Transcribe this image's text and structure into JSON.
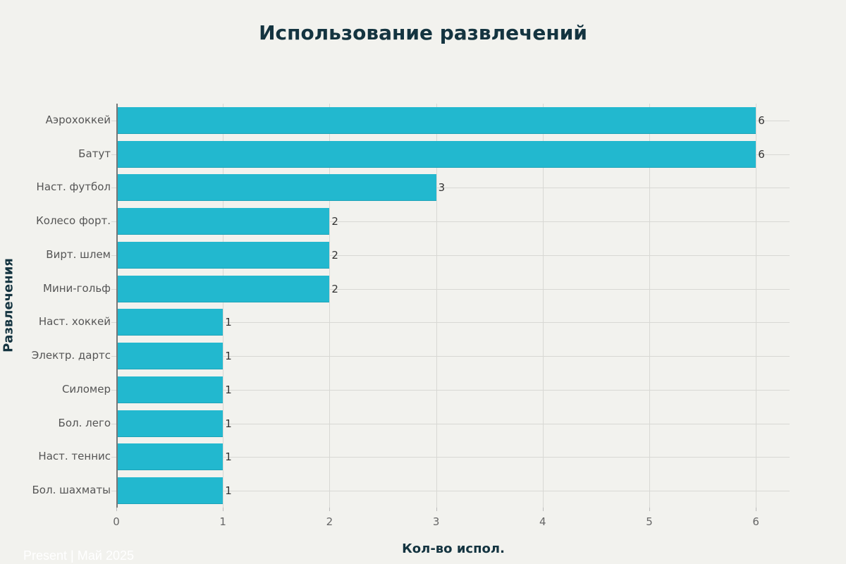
{
  "chart_data": {
    "type": "bar",
    "orientation": "horizontal",
    "title": "Использование развлечений",
    "xlabel": "Кол-во испол.",
    "ylabel": "Развлечения",
    "categories": [
      "Аэрохоккей",
      "Батут",
      "Наст. футбол",
      "Колесо форт.",
      "Вирт. шлем",
      "Мини-гольф",
      "Наст. хоккей",
      "Электр. дартс",
      "Силомер",
      "Бол. лего",
      "Наст. теннис",
      "Бол. шахматы"
    ],
    "values": [
      6,
      6,
      3,
      2,
      2,
      2,
      1,
      1,
      1,
      1,
      1,
      1
    ],
    "xlim": [
      0,
      6.3
    ],
    "xticks": [
      0,
      1,
      2,
      3,
      4,
      5,
      6
    ],
    "grid": true,
    "bar_color": "#22b8cf",
    "data_labels": true
  },
  "watermark": "Present | Май 2025"
}
